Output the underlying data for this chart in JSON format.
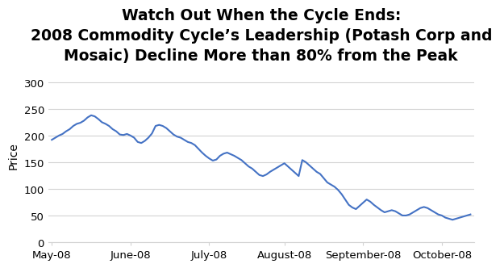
{
  "title_line1": "Watch Out When the Cycle Ends:",
  "title_line2": "2008 Commodity Cycle’s Leadership (Potash Corp and",
  "title_line3": "Mosaic) Decline More than 80% from the Peak",
  "ylabel": "Price",
  "xlabel": "",
  "line_color": "#4472C4",
  "line_width": 1.5,
  "background_color": "#ffffff",
  "grid_color": "#d3d3d3",
  "ylim": [
    0,
    325
  ],
  "yticks": [
    0,
    50,
    100,
    150,
    200,
    250,
    300
  ],
  "xtick_labels": [
    "May-08",
    "June-08",
    "July-08",
    "August-08",
    "September-08",
    "October-08"
  ],
  "prices": [
    192,
    196,
    200,
    203,
    208,
    212,
    218,
    222,
    224,
    228,
    234,
    238,
    236,
    231,
    225,
    222,
    218,
    212,
    208,
    202,
    201,
    203,
    200,
    196,
    188,
    186,
    190,
    196,
    204,
    218,
    220,
    218,
    214,
    208,
    202,
    198,
    196,
    192,
    188,
    186,
    182,
    175,
    168,
    162,
    157,
    153,
    155,
    162,
    166,
    168,
    165,
    162,
    158,
    154,
    148,
    142,
    138,
    132,
    126,
    124,
    127,
    132,
    136,
    140,
    144,
    148,
    142,
    136,
    130,
    124,
    154,
    150,
    144,
    138,
    132,
    128,
    120,
    112,
    108,
    104,
    98,
    90,
    80,
    70,
    65,
    62,
    68,
    74,
    80,
    76,
    70,
    65,
    60,
    56,
    58,
    60,
    58,
    54,
    50,
    50,
    52,
    56,
    60,
    64,
    66,
    64,
    60,
    56,
    52,
    50,
    46,
    44,
    42,
    44,
    46,
    48,
    50,
    52
  ],
  "title_fontsize": 13.5,
  "tick_fontsize": 9.5,
  "ylabel_fontsize": 10
}
